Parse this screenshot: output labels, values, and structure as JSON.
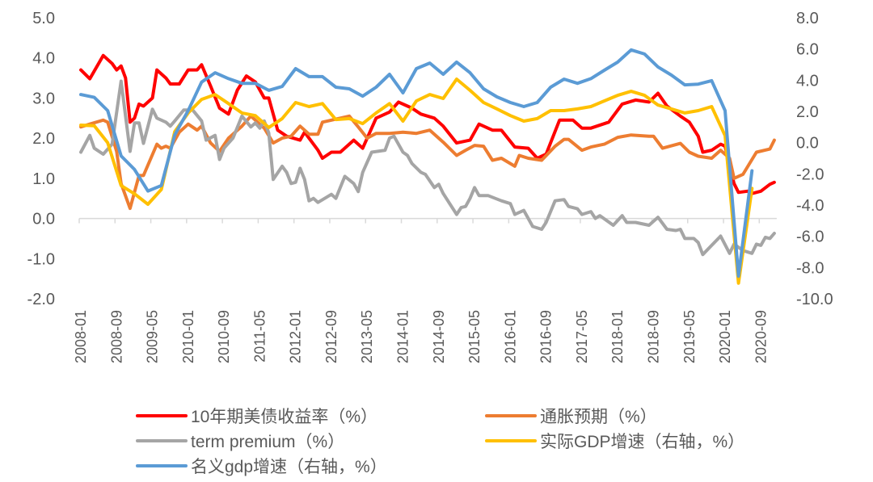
{
  "chart_data": {
    "type": "line",
    "title": "",
    "xlabel": "",
    "ylabel_left": "",
    "ylabel_right": "",
    "x_tick_labels": [
      "2008-01",
      "2008-09",
      "2009-05",
      "2010-01",
      "2010-09",
      "2011-05",
      "2012-01",
      "2012-09",
      "2013-05",
      "2014-01",
      "2014-09",
      "2015-05",
      "2016-01",
      "2016-09",
      "2017-05",
      "2018-01",
      "2018-09",
      "2019-05",
      "2020-01",
      "2020-09"
    ],
    "x_range": [
      "2008-01",
      "2020-12"
    ],
    "y_left": {
      "range": [
        -2,
        5
      ],
      "ticks": [
        "5.0",
        "4.0",
        "3.0",
        "2.0",
        "1.0",
        "0.0",
        "-1.0",
        "-2.0"
      ]
    },
    "y_right": {
      "range": [
        -10,
        8
      ],
      "ticks": [
        "8.0",
        "6.0",
        "4.0",
        "2.0",
        "0.0",
        "-2.0",
        "-4.0",
        "-6.0",
        "-8.0",
        "-10.0"
      ]
    },
    "grid": false,
    "legend_position": "bottom",
    "series": [
      {
        "name": "10年期美债收益率（%）",
        "color": "#ff0000",
        "axis": "left",
        "points": [
          [
            "2008-01",
            3.7
          ],
          [
            "2008-03",
            3.48
          ],
          [
            "2008-06",
            4.06
          ],
          [
            "2008-08",
            3.86
          ],
          [
            "2008-09",
            3.7
          ],
          [
            "2008-10",
            3.8
          ],
          [
            "2008-11",
            3.5
          ],
          [
            "2008-12",
            2.4
          ],
          [
            "2009-01",
            2.5
          ],
          [
            "2009-02",
            2.85
          ],
          [
            "2009-03",
            2.8
          ],
          [
            "2009-05",
            3.0
          ],
          [
            "2009-06",
            3.7
          ],
          [
            "2009-08",
            3.5
          ],
          [
            "2009-09",
            3.35
          ],
          [
            "2009-11",
            3.35
          ],
          [
            "2010-01",
            3.7
          ],
          [
            "2010-03",
            3.7
          ],
          [
            "2010-04",
            3.83
          ],
          [
            "2010-06",
            3.3
          ],
          [
            "2010-08",
            2.75
          ],
          [
            "2010-10",
            2.6
          ],
          [
            "2010-12",
            3.2
          ],
          [
            "2011-02",
            3.55
          ],
          [
            "2011-04",
            3.4
          ],
          [
            "2011-06",
            3.0
          ],
          [
            "2011-07",
            3.0
          ],
          [
            "2011-09",
            2.2
          ],
          [
            "2011-11",
            2.05
          ],
          [
            "2012-02",
            1.95
          ],
          [
            "2012-03",
            2.15
          ],
          [
            "2012-06",
            1.7
          ],
          [
            "2012-07",
            1.5
          ],
          [
            "2012-09",
            1.65
          ],
          [
            "2012-11",
            1.65
          ],
          [
            "2013-02",
            1.95
          ],
          [
            "2013-04",
            1.75
          ],
          [
            "2013-07",
            2.5
          ],
          [
            "2013-10",
            2.65
          ],
          [
            "2013-12",
            2.9
          ],
          [
            "2014-03",
            2.75
          ],
          [
            "2014-05",
            2.6
          ],
          [
            "2014-08",
            2.5
          ],
          [
            "2014-10",
            2.3
          ],
          [
            "2015-01",
            1.88
          ],
          [
            "2015-04",
            1.95
          ],
          [
            "2015-06",
            2.35
          ],
          [
            "2015-09",
            2.2
          ],
          [
            "2015-11",
            2.2
          ],
          [
            "2016-02",
            1.78
          ],
          [
            "2016-05",
            1.75
          ],
          [
            "2016-07",
            1.5
          ],
          [
            "2016-09",
            1.6
          ],
          [
            "2016-12",
            2.45
          ],
          [
            "2017-03",
            2.45
          ],
          [
            "2017-05",
            2.25
          ],
          [
            "2017-07",
            2.25
          ],
          [
            "2017-11",
            2.4
          ],
          [
            "2018-02",
            2.85
          ],
          [
            "2018-05",
            2.95
          ],
          [
            "2018-08",
            2.9
          ],
          [
            "2018-10",
            3.12
          ],
          [
            "2018-12",
            2.8
          ],
          [
            "2019-03",
            2.55
          ],
          [
            "2019-05",
            2.4
          ],
          [
            "2019-07",
            2.05
          ],
          [
            "2019-08",
            1.65
          ],
          [
            "2019-10",
            1.7
          ],
          [
            "2019-12",
            1.85
          ],
          [
            "2020-01",
            1.8
          ],
          [
            "2020-03",
            0.87
          ],
          [
            "2020-04",
            0.65
          ],
          [
            "2020-06",
            0.68
          ],
          [
            "2020-07",
            0.62
          ],
          [
            "2020-09",
            0.68
          ],
          [
            "2020-11",
            0.85
          ],
          [
            "2020-12",
            0.9
          ]
        ]
      },
      {
        "name": "通胀预期（%）",
        "color": "#ed7d31",
        "axis": "left",
        "points": [
          [
            "2008-01",
            2.28
          ],
          [
            "2008-03",
            2.35
          ],
          [
            "2008-06",
            2.45
          ],
          [
            "2008-07",
            2.4
          ],
          [
            "2008-09",
            1.67
          ],
          [
            "2008-10",
            0.87
          ],
          [
            "2008-12",
            0.25
          ],
          [
            "2009-02",
            1.07
          ],
          [
            "2009-03",
            1.07
          ],
          [
            "2009-06",
            1.85
          ],
          [
            "2009-07",
            1.75
          ],
          [
            "2009-08",
            1.8
          ],
          [
            "2009-09",
            1.75
          ],
          [
            "2009-11",
            2.15
          ],
          [
            "2010-01",
            2.35
          ],
          [
            "2010-03",
            2.2
          ],
          [
            "2010-04",
            2.3
          ],
          [
            "2010-06",
            1.88
          ],
          [
            "2010-08",
            1.67
          ],
          [
            "2010-10",
            2.0
          ],
          [
            "2011-01",
            2.3
          ],
          [
            "2011-03",
            2.55
          ],
          [
            "2011-06",
            2.25
          ],
          [
            "2011-08",
            1.88
          ],
          [
            "2011-10",
            2.0
          ],
          [
            "2011-12",
            2.05
          ],
          [
            "2012-02",
            2.3
          ],
          [
            "2012-04",
            2.1
          ],
          [
            "2012-06",
            2.1
          ],
          [
            "2012-07",
            2.4
          ],
          [
            "2012-09",
            2.45
          ],
          [
            "2013-01",
            2.55
          ],
          [
            "2013-03",
            2.28
          ],
          [
            "2013-05",
            2.0
          ],
          [
            "2013-07",
            2.12
          ],
          [
            "2013-10",
            2.12
          ],
          [
            "2014-01",
            2.15
          ],
          [
            "2014-04",
            2.12
          ],
          [
            "2014-07",
            2.2
          ],
          [
            "2014-10",
            1.9
          ],
          [
            "2015-01",
            1.57
          ],
          [
            "2015-03",
            1.7
          ],
          [
            "2015-05",
            1.82
          ],
          [
            "2015-07",
            1.8
          ],
          [
            "2015-09",
            1.45
          ],
          [
            "2015-11",
            1.5
          ],
          [
            "2016-02",
            1.3
          ],
          [
            "2016-03",
            1.57
          ],
          [
            "2016-05",
            1.5
          ],
          [
            "2016-08",
            1.45
          ],
          [
            "2016-11",
            1.8
          ],
          [
            "2017-01",
            1.97
          ],
          [
            "2017-02",
            1.97
          ],
          [
            "2017-05",
            1.7
          ],
          [
            "2017-07",
            1.78
          ],
          [
            "2017-10",
            1.85
          ],
          [
            "2018-01",
            2.02
          ],
          [
            "2018-04",
            2.08
          ],
          [
            "2018-08",
            2.05
          ],
          [
            "2018-09",
            2.05
          ],
          [
            "2018-11",
            1.75
          ],
          [
            "2019-03",
            1.87
          ],
          [
            "2019-05",
            1.65
          ],
          [
            "2019-07",
            1.55
          ],
          [
            "2019-10",
            1.5
          ],
          [
            "2019-12",
            1.7
          ],
          [
            "2020-02",
            1.5
          ],
          [
            "2020-03",
            1.0
          ],
          [
            "2020-04",
            1.05
          ],
          [
            "2020-05",
            1.1
          ],
          [
            "2020-08",
            1.65
          ],
          [
            "2020-11",
            1.73
          ],
          [
            "2020-12",
            1.95
          ]
        ]
      },
      {
        "name": "term premium（%）",
        "color": "#a5a5a5",
        "axis": "left",
        "points": [
          [
            "2008-01",
            1.65
          ],
          [
            "2008-03",
            2.07
          ],
          [
            "2008-04",
            1.75
          ],
          [
            "2008-06",
            1.6
          ],
          [
            "2008-08",
            1.85
          ],
          [
            "2008-10",
            3.42
          ],
          [
            "2008-12",
            1.67
          ],
          [
            "2009-01",
            2.38
          ],
          [
            "2009-02",
            2.38
          ],
          [
            "2009-03",
            1.87
          ],
          [
            "2009-05",
            2.72
          ],
          [
            "2009-06",
            2.5
          ],
          [
            "2009-08",
            2.4
          ],
          [
            "2009-09",
            2.3
          ],
          [
            "2009-10",
            2.43
          ],
          [
            "2009-12",
            2.7
          ],
          [
            "2010-02",
            2.7
          ],
          [
            "2010-04",
            2.43
          ],
          [
            "2010-05",
            1.95
          ],
          [
            "2010-07",
            2.07
          ],
          [
            "2010-08",
            1.47
          ],
          [
            "2010-09",
            1.75
          ],
          [
            "2010-11",
            2.0
          ],
          [
            "2011-01",
            2.55
          ],
          [
            "2011-03",
            2.28
          ],
          [
            "2011-04",
            2.38
          ],
          [
            "2011-05",
            2.25
          ],
          [
            "2011-06",
            2.43
          ],
          [
            "2011-07",
            2.13
          ],
          [
            "2011-08",
            0.97
          ],
          [
            "2011-10",
            1.3
          ],
          [
            "2011-11",
            1.15
          ],
          [
            "2011-12",
            0.87
          ],
          [
            "2012-01",
            0.9
          ],
          [
            "2012-02",
            1.25
          ],
          [
            "2012-03",
            0.97
          ],
          [
            "2012-04",
            0.44
          ],
          [
            "2012-05",
            0.5
          ],
          [
            "2012-06",
            0.4
          ],
          [
            "2012-09",
            0.6
          ],
          [
            "2012-10",
            0.5
          ],
          [
            "2012-12",
            1.05
          ],
          [
            "2013-02",
            0.87
          ],
          [
            "2013-03",
            0.67
          ],
          [
            "2013-04",
            1.15
          ],
          [
            "2013-06",
            1.65
          ],
          [
            "2013-09",
            1.7
          ],
          [
            "2013-10",
            2.0
          ],
          [
            "2013-11",
            2.05
          ],
          [
            "2014-01",
            1.65
          ],
          [
            "2014-02",
            1.57
          ],
          [
            "2014-03",
            1.37
          ],
          [
            "2014-05",
            1.15
          ],
          [
            "2014-06",
            1.1
          ],
          [
            "2014-08",
            0.77
          ],
          [
            "2014-09",
            0.85
          ],
          [
            "2014-10",
            0.62
          ],
          [
            "2015-01",
            0.1
          ],
          [
            "2015-02",
            0.27
          ],
          [
            "2015-03",
            0.3
          ],
          [
            "2015-04",
            0.5
          ],
          [
            "2015-05",
            0.77
          ],
          [
            "2015-06",
            0.57
          ],
          [
            "2015-08",
            0.57
          ],
          [
            "2015-11",
            0.44
          ],
          [
            "2016-01",
            0.37
          ],
          [
            "2016-02",
            0.1
          ],
          [
            "2016-04",
            0.2
          ],
          [
            "2016-06",
            -0.2
          ],
          [
            "2016-08",
            -0.27
          ],
          [
            "2016-09",
            -0.1
          ],
          [
            "2016-11",
            0.44
          ],
          [
            "2017-01",
            0.47
          ],
          [
            "2017-02",
            0.3
          ],
          [
            "2017-04",
            0.24
          ],
          [
            "2017-05",
            0.1
          ],
          [
            "2017-07",
            0.17
          ],
          [
            "2017-08",
            0.0
          ],
          [
            "2017-09",
            0.07
          ],
          [
            "2017-12",
            -0.17
          ],
          [
            "2018-02",
            0.07
          ],
          [
            "2018-03",
            -0.1
          ],
          [
            "2018-05",
            -0.1
          ],
          [
            "2018-08",
            -0.17
          ],
          [
            "2018-10",
            0.03
          ],
          [
            "2018-12",
            -0.27
          ],
          [
            "2019-02",
            -0.3
          ],
          [
            "2019-03",
            -0.27
          ],
          [
            "2019-04",
            -0.5
          ],
          [
            "2019-06",
            -0.5
          ],
          [
            "2019-07",
            -0.6
          ],
          [
            "2019-08",
            -0.9
          ],
          [
            "2019-10",
            -0.67
          ],
          [
            "2019-12",
            -0.44
          ],
          [
            "2020-02",
            -0.87
          ],
          [
            "2020-03",
            -0.64
          ],
          [
            "2020-05",
            -0.8
          ],
          [
            "2020-07",
            -0.87
          ],
          [
            "2020-08",
            -0.64
          ],
          [
            "2020-09",
            -0.67
          ],
          [
            "2020-10",
            -0.47
          ],
          [
            "2020-11",
            -0.5
          ],
          [
            "2020-12",
            -0.37
          ]
        ]
      },
      {
        "name": "实际GDP增速（右轴，%）",
        "color": "#ffc000",
        "axis": "right",
        "start": "2008-01",
        "step_months": 3,
        "values": [
          1.12,
          1.08,
          0,
          -2.75,
          -3.28,
          -3.95,
          -3.0,
          0.7,
          1.9,
          2.77,
          3.08,
          2.5,
          1.9,
          1.73,
          0.97,
          1.54,
          2.57,
          2.31,
          2.5,
          1.48,
          1.54,
          1.22,
          1.9,
          2.5,
          1.38,
          2.67,
          3.08,
          2.83,
          4.07,
          3.35,
          2.57,
          2.16,
          1.73,
          1.38,
          1.54,
          2.05,
          2.05,
          2.16,
          2.31,
          2.67,
          3.03,
          3.29,
          3.03,
          2.41,
          2.16,
          1.9,
          2.05,
          2.31,
          0.45,
          -9.0,
          -2.93
        ]
      },
      {
        "name": "名义gdp增速（右轴，%）",
        "color": "#5b9bd5",
        "axis": "right",
        "start": "2008-01",
        "step_months": 3,
        "values": [
          3.08,
          2.9,
          2.05,
          -0.85,
          -1.72,
          -3.1,
          -2.75,
          0.5,
          2.05,
          3.88,
          4.48,
          4.1,
          3.8,
          3.8,
          3.35,
          3.6,
          4.74,
          4.23,
          4.23,
          3.55,
          3.45,
          2.98,
          3.55,
          4.38,
          3.19,
          4.74,
          5.1,
          4.38,
          5.16,
          4.48,
          3.45,
          2.93,
          2.57,
          2.31,
          2.57,
          3.55,
          4.07,
          3.8,
          4.1,
          4.64,
          5.16,
          5.94,
          5.68,
          4.85,
          4.33,
          3.7,
          3.75,
          3.97,
          2.05,
          -8.55,
          -1.8
        ]
      }
    ]
  }
}
